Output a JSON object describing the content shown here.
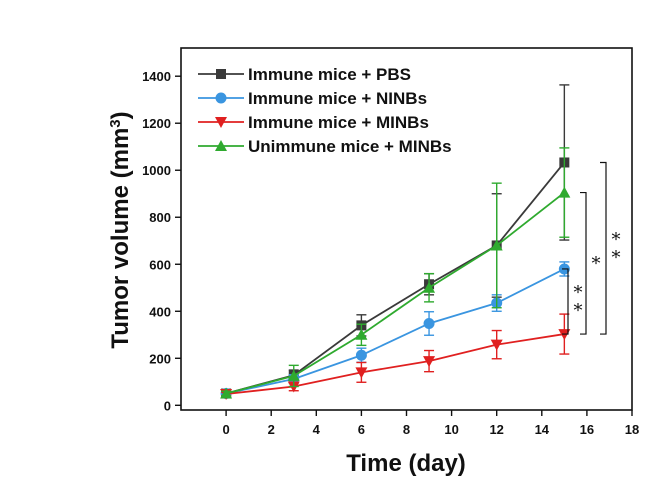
{
  "chart_data": {
    "type": "line",
    "xlabel": "Time (day)",
    "ylabel_main": "Tumor volume (mm",
    "ylabel_sup": "3",
    "ylabel_close": ")",
    "xlim": [
      -2,
      18
    ],
    "ylim": [
      -20,
      1520
    ],
    "x_ticks": [
      0,
      2,
      4,
      6,
      8,
      10,
      12,
      14,
      16,
      18
    ],
    "y_ticks": [
      0,
      200,
      400,
      600,
      800,
      1000,
      1200,
      1400
    ],
    "x": [
      0,
      3,
      6,
      9,
      12,
      15
    ],
    "legend_position": "top-left",
    "series": [
      {
        "name": "Immune mice + PBS",
        "color": "#3a3a3a",
        "marker": "square",
        "values": [
          50,
          128,
          340,
          515,
          680,
          1033
        ],
        "errors": [
          10,
          22,
          45,
          45,
          220,
          330
        ]
      },
      {
        "name": "Immune mice + NINBs",
        "color": "#3a95e0",
        "marker": "circle",
        "values": [
          50,
          112,
          213,
          348,
          435,
          580
        ],
        "errors": [
          10,
          18,
          30,
          50,
          35,
          30
        ]
      },
      {
        "name": "Immune mice + MINBs",
        "color": "#e02020",
        "marker": "triangle-down",
        "values": [
          48,
          80,
          140,
          188,
          258,
          303
        ],
        "errors": [
          8,
          18,
          42,
          45,
          60,
          85
        ]
      },
      {
        "name": "Unimmune mice + MINBs",
        "color": "#2faa2f",
        "marker": "triangle-up",
        "values": [
          50,
          125,
          300,
          500,
          680,
          905
        ],
        "errors": [
          10,
          45,
          45,
          60,
          265,
          190
        ]
      }
    ],
    "significance": [
      {
        "label": "**",
        "from": 303,
        "to": 580
      },
      {
        "label": "*",
        "from": 303,
        "to": 905
      },
      {
        "label": "**",
        "from": 303,
        "to": 1033
      }
    ]
  }
}
